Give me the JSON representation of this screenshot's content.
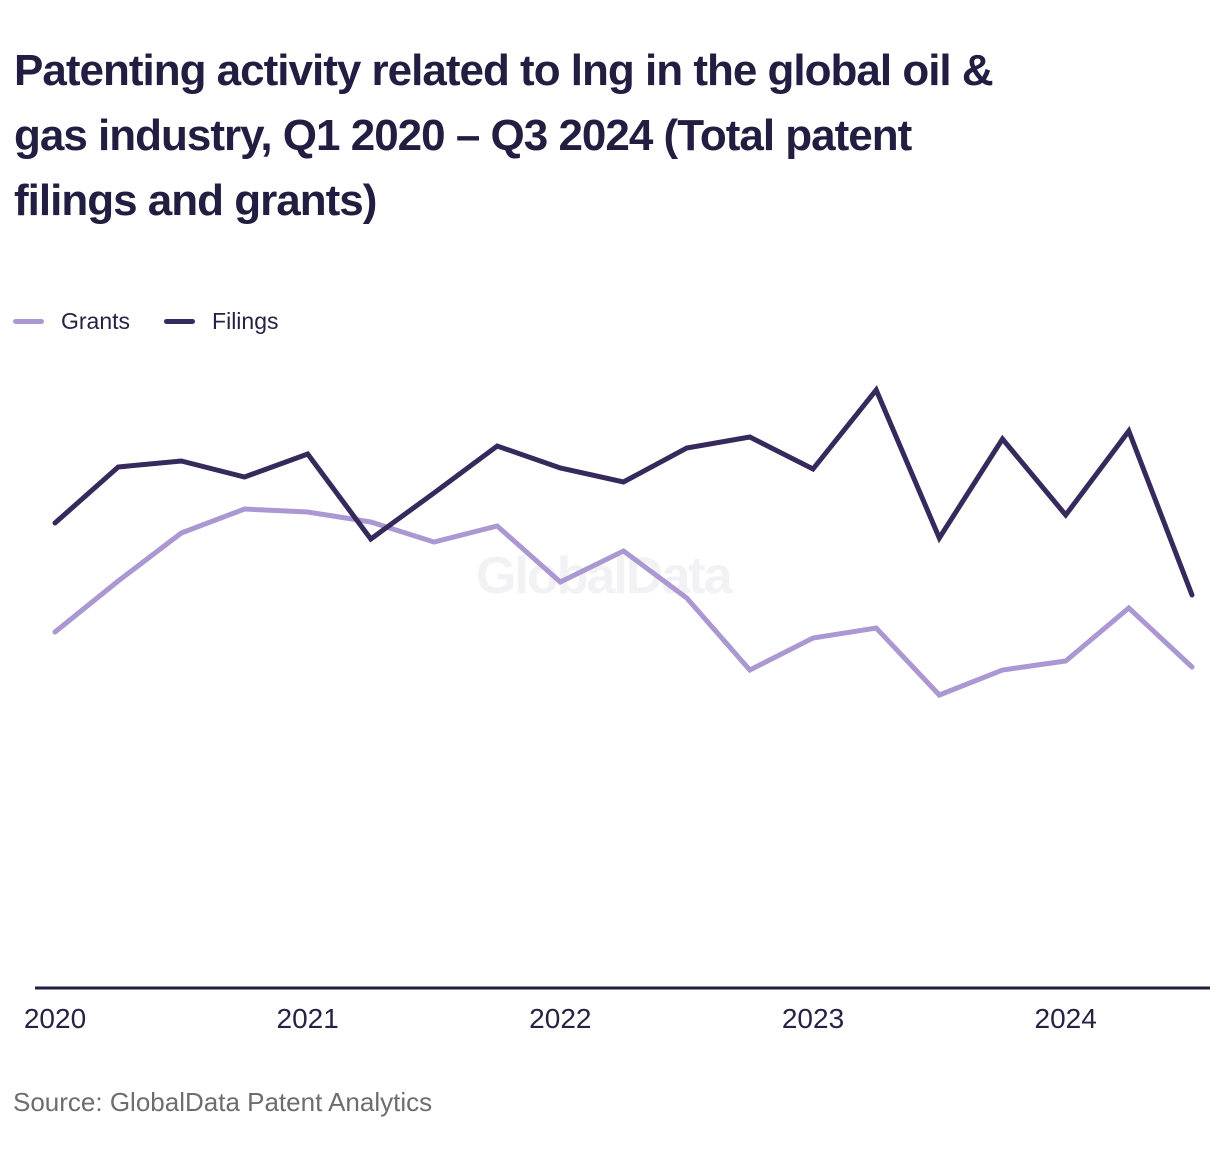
{
  "title": {
    "lines": [
      "Patenting activity related to lng in the global oil &",
      "gas industry, Q1 2020 – Q3 2024 (Total patent",
      "filings and grants)"
    ]
  },
  "legend": [
    {
      "label": "Grants",
      "color": "#ab98d2"
    },
    {
      "label": "Filings",
      "color": "#362a5c"
    }
  ],
  "watermark": "GlobalData",
  "source": "Source: GlobalData Patent Analytics",
  "colors": {
    "text_dark": "#221e41",
    "tick_text": "#262243",
    "axis_line": "#221e41",
    "grants_line": "#ab98d2",
    "filings_line": "#362a5c",
    "source_text": "#6d6d6d",
    "watermark": "#f2f1f4",
    "background": "#ffffff"
  },
  "chart_data": {
    "type": "line",
    "title": "Patenting activity related to lng in the global oil & gas industry, Q1 2020 – Q3 2024 (Total patent filings and grants)",
    "xlabel": "",
    "ylabel": "",
    "categories": [
      "Q1 2020",
      "Q2 2020",
      "Q3 2020",
      "Q4 2020",
      "Q1 2021",
      "Q2 2021",
      "Q3 2021",
      "Q4 2021",
      "Q1 2022",
      "Q2 2022",
      "Q3 2022",
      "Q4 2022",
      "Q1 2023",
      "Q2 2023",
      "Q3 2023",
      "Q4 2023",
      "Q1 2024",
      "Q2 2024",
      "Q3 2024"
    ],
    "series": [
      {
        "name": "Grants",
        "color": "#ab98d2",
        "values": [
          358,
          409,
          457,
          481,
          478,
          468,
          448,
          464,
          408,
          439,
          392,
          320,
          352,
          362,
          295,
          320,
          329,
          382,
          323
        ]
      },
      {
        "name": "Filings",
        "color": "#362a5c",
        "values": [
          467,
          523,
          529,
          513,
          536,
          451,
          497,
          544,
          522,
          508,
          542,
          553,
          521,
          600,
          452,
          551,
          475,
          559,
          395
        ]
      }
    ],
    "x_tick_labels": [
      "2020",
      "2021",
      "2022",
      "2023",
      "2024"
    ],
    "ylim": [
      0,
      700
    ],
    "grid": false,
    "y_axis_visible": false,
    "x_axis_visible": true,
    "legend_position": "top-left"
  }
}
